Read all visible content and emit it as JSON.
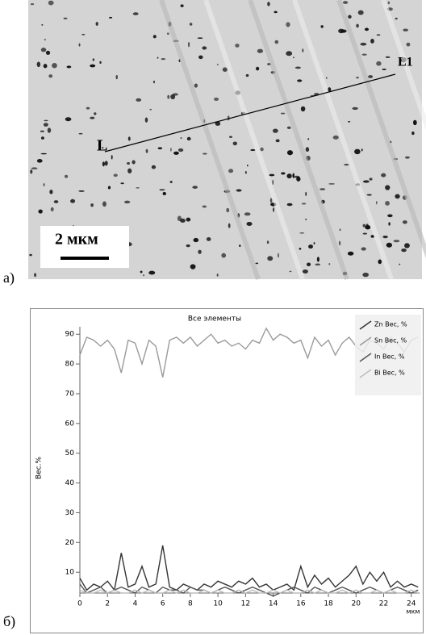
{
  "figure_a": {
    "panel_label": "а)",
    "marker_start": "L",
    "marker_end": "L1",
    "scale_bar": "2 мкм"
  },
  "panel_b_label": "б)",
  "chart_data": {
    "type": "line",
    "title": "Все элементы",
    "x_label": "мкм",
    "y_label": "Вес.%",
    "x": [
      0,
      0.5,
      1,
      1.5,
      2,
      2.5,
      3,
      3.5,
      4,
      4.5,
      5,
      5.5,
      6,
      6.5,
      7,
      7.5,
      8,
      8.5,
      9,
      9.5,
      10,
      10.5,
      11,
      11.5,
      12,
      12.5,
      13,
      13.5,
      14,
      14.5,
      15,
      15.5,
      16,
      16.5,
      17,
      17.5,
      18,
      18.5,
      19,
      19.5,
      20,
      20.5,
      21,
      21.5,
      22,
      22.5,
      23,
      23.5,
      24,
      24.5
    ],
    "series": [
      {
        "name": "Zn Вес, %",
        "color": "#333333",
        "values": [
          8,
          4,
          6,
          5,
          7,
          4,
          16.5,
          5,
          6,
          12,
          5,
          6,
          19,
          5,
          4,
          6,
          5,
          4,
          6,
          5,
          7,
          6,
          5,
          7,
          6,
          8,
          5,
          6,
          4,
          5,
          6,
          4,
          12,
          5,
          9,
          6,
          8,
          5,
          7,
          9,
          12,
          6,
          10,
          7,
          10,
          5,
          7,
          5,
          6,
          5
        ]
      },
      {
        "name": "Sn Вес, %",
        "color": "#9a9a9a",
        "values": [
          83,
          89,
          88,
          86,
          88,
          85,
          77,
          88,
          87,
          80,
          88,
          86,
          75.5,
          88,
          89,
          87,
          89,
          86,
          88,
          90,
          87,
          88,
          86,
          87,
          85,
          88,
          87,
          92,
          88,
          90,
          89,
          87,
          88,
          82,
          89,
          86,
          88,
          83,
          87,
          89,
          86,
          84,
          88,
          87,
          85,
          89,
          87,
          84,
          88,
          89
        ]
      },
      {
        "name": "In Вес, %",
        "color": "#555555",
        "values": [
          6,
          3,
          4,
          5,
          3,
          4,
          5,
          4,
          3,
          5,
          4,
          3,
          5,
          4,
          4,
          3,
          5,
          4,
          4,
          3,
          4,
          5,
          4,
          3,
          4,
          5,
          4,
          3,
          2,
          3,
          4,
          5,
          4,
          3,
          5,
          4,
          3,
          4,
          5,
          4,
          3,
          4,
          5,
          4,
          3,
          4,
          5,
          4,
          3,
          4
        ]
      },
      {
        "name": "Bi Вес, %",
        "color": "#bdbdbd",
        "values": [
          4,
          3,
          3,
          4,
          3,
          4,
          3,
          3,
          4,
          3,
          4,
          3,
          3,
          4,
          3,
          4,
          3,
          3,
          4,
          3,
          4,
          3,
          3,
          4,
          3,
          4,
          3,
          3,
          4,
          3,
          4,
          3,
          3,
          4,
          3,
          4,
          3,
          3,
          4,
          3,
          4,
          3,
          3,
          4,
          3,
          4,
          3,
          3,
          4,
          3
        ]
      }
    ],
    "xlim": [
      0,
      24.6
    ],
    "ylim": [
      3,
      92.5
    ],
    "xticks": [
      0,
      2,
      4,
      6,
      8,
      10,
      12,
      14,
      16,
      18,
      20,
      22,
      24
    ],
    "yticks": [
      10,
      20,
      30,
      40,
      50,
      60,
      70,
      80,
      90
    ],
    "legend": "upper right"
  }
}
